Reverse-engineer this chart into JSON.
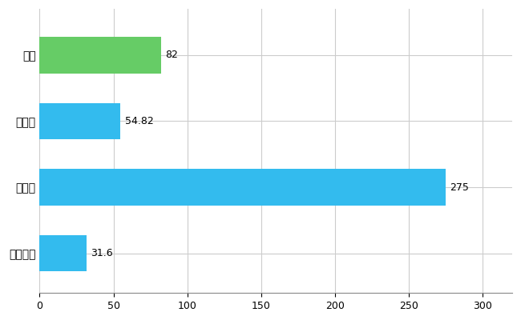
{
  "categories": [
    "灘区",
    "県平均",
    "県最大",
    "全国平均"
  ],
  "values": [
    82,
    54.82,
    275,
    31.6
  ],
  "bar_colors": [
    "#66cc66",
    "#33bbee",
    "#33bbee",
    "#33bbee"
  ],
  "value_labels": [
    "82",
    "54.82",
    "275",
    "31.6"
  ],
  "xlim": [
    0,
    320
  ],
  "xticks": [
    0,
    50,
    100,
    150,
    200,
    250,
    300
  ],
  "background_color": "#ffffff",
  "grid_color": "#cccccc",
  "bar_height": 0.55
}
